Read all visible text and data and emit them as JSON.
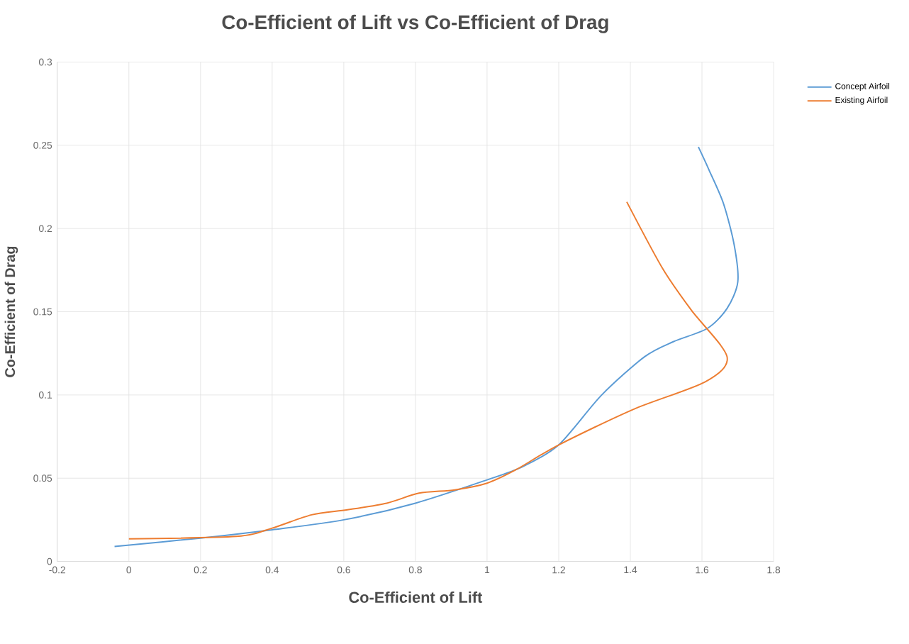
{
  "chart_data": {
    "type": "line",
    "title": "Co-Efficient of Lift vs Co-Efficient of Drag",
    "xlabel": "Co-Efficient of Lift",
    "ylabel": "Co-Efficient of Drag",
    "xlim": [
      -0.2,
      1.8
    ],
    "ylim": [
      0,
      0.3
    ],
    "xticks": [
      -0.2,
      0,
      0.2,
      0.4,
      0.6,
      0.8,
      1,
      1.2,
      1.4,
      1.6,
      1.8
    ],
    "yticks": [
      0,
      0.05,
      0.1,
      0.15,
      0.2,
      0.25,
      0.3
    ],
    "grid": true,
    "legend": "right",
    "marker": "none",
    "line_style": "solid",
    "series": [
      {
        "name": "Concept Airfoil",
        "color": "#5b9bd5",
        "x": [
          -0.04,
          0.2,
          0.4,
          0.6,
          0.8,
          1.0,
          1.1,
          1.2,
          1.32,
          1.44,
          1.52,
          1.615,
          1.67,
          1.7,
          1.69,
          1.66,
          1.62,
          1.59
        ],
        "values": [
          0.009,
          0.014,
          0.019,
          0.025,
          0.035,
          0.049,
          0.057,
          0.07,
          0.1,
          0.123,
          0.132,
          0.14,
          0.152,
          0.168,
          0.19,
          0.215,
          0.235,
          0.249
        ]
      },
      {
        "name": "Existing Airfoil",
        "color": "#ed7d31",
        "x": [
          0,
          0.3,
          0.4,
          0.51,
          0.61,
          0.72,
          0.81,
          0.91,
          1.0,
          1.08,
          1.2,
          1.41,
          1.61,
          1.67,
          1.57,
          1.49,
          1.39
        ],
        "values": [
          0.0136,
          0.015,
          0.02,
          0.028,
          0.031,
          0.035,
          0.041,
          0.043,
          0.047,
          0.055,
          0.07,
          0.0915,
          0.108,
          0.123,
          0.151,
          0.176,
          0.216
        ]
      }
    ]
  }
}
